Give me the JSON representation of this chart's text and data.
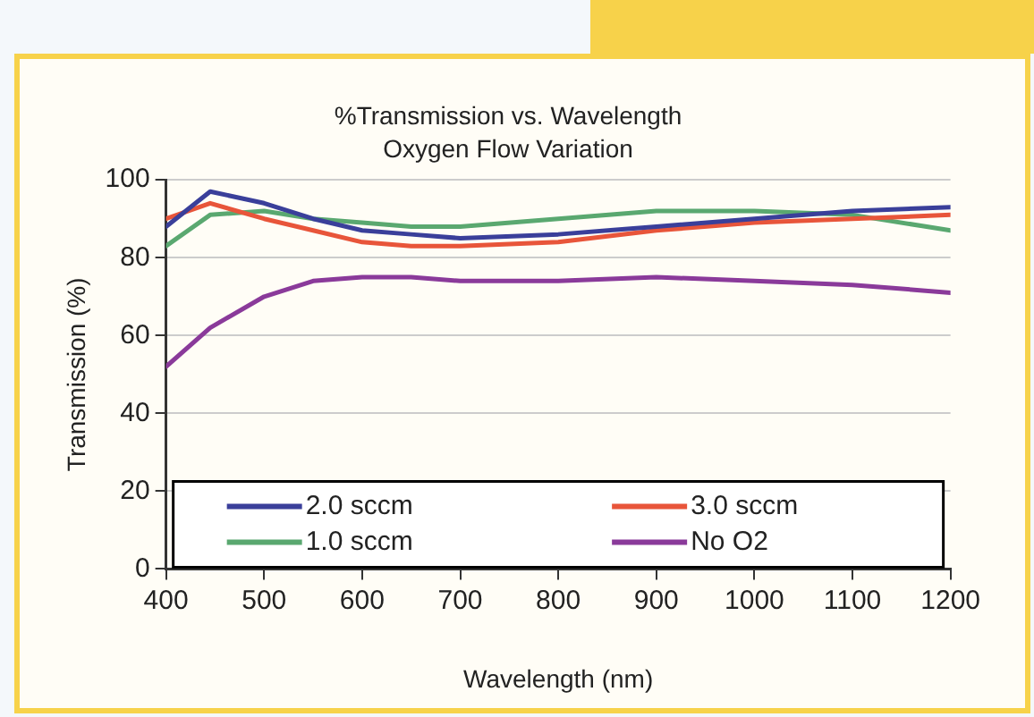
{
  "chart_data": {
    "type": "line",
    "title": "%Transmission vs. Wavelength",
    "subtitle": "Oxygen Flow Variation",
    "xlabel": "Wavelength (nm)",
    "ylabel": "Transmission (%)",
    "x": [
      400,
      445,
      500,
      550,
      600,
      650,
      700,
      800,
      900,
      1000,
      1100,
      1200
    ],
    "series": [
      {
        "name": "2.0 sccm",
        "color": "#3a3f9a",
        "values": [
          88,
          97,
          94,
          90,
          87,
          86,
          85,
          86,
          88,
          90,
          92,
          93
        ]
      },
      {
        "name": "3.0 sccm",
        "color": "#e8553a",
        "values": [
          90,
          94,
          90,
          87,
          84,
          83,
          83,
          84,
          87,
          89,
          90,
          91
        ]
      },
      {
        "name": "1.0 sccm",
        "color": "#5aa870",
        "values": [
          83,
          91,
          92,
          90,
          89,
          88,
          88,
          90,
          92,
          92,
          91,
          87
        ]
      },
      {
        "name": "No O2",
        "color": "#8a3a9a",
        "values": [
          52,
          62,
          70,
          74,
          75,
          75,
          74,
          74,
          75,
          74,
          73,
          71
        ]
      }
    ],
    "xlim": [
      400,
      1200
    ],
    "xticks": [
      400,
      500,
      600,
      700,
      800,
      900,
      1000,
      1100,
      1200
    ],
    "ylim": [
      0,
      100
    ],
    "yticks": [
      0,
      20,
      40,
      60,
      80,
      100
    ],
    "grid": "y",
    "legend": "bottom",
    "marker": "none",
    "line_style": "solid"
  }
}
